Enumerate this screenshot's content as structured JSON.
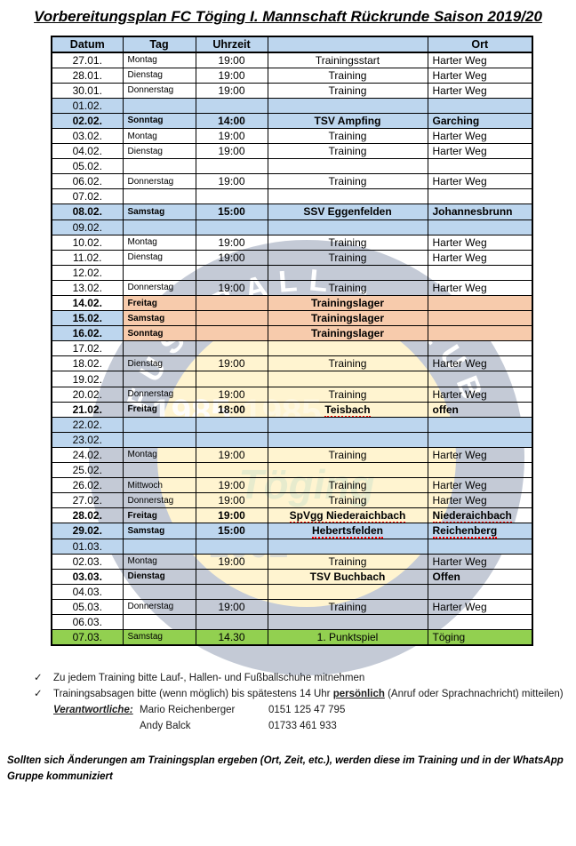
{
  "title": "Vorbereitungsplan FC Töging I. Mannschaft Rückrunde Saison 2019/20",
  "table": {
    "headers": [
      "Datum",
      "Tag",
      "Uhrzeit",
      "",
      "Ort"
    ],
    "rows": [
      {
        "date": "27.01.",
        "day": "Montag",
        "time": "19:00",
        "event": "Trainingsstart",
        "location": "Harter Weg",
        "row_bg": "white"
      },
      {
        "date": "28.01.",
        "day": "Dienstag",
        "time": "19:00",
        "event": "Training",
        "location": "Harter Weg",
        "row_bg": "white"
      },
      {
        "date": "30.01.",
        "day": "Donnerstag",
        "time": "19:00",
        "event": "Training",
        "location": "Harter Weg",
        "row_bg": "white"
      },
      {
        "date": "01.02.",
        "day": "",
        "time": "",
        "event": "",
        "location": "",
        "row_bg": "blue"
      },
      {
        "date": "02.02.",
        "day": "Sonntag",
        "time": "14:00",
        "event": "TSV Ampfing",
        "location": "Garching",
        "row_bg": "blue",
        "bold": true
      },
      {
        "date": "03.02.",
        "day": "Montag",
        "time": "19:00",
        "event": "Training",
        "location": "Harter Weg",
        "row_bg": "white"
      },
      {
        "date": "04.02.",
        "day": "Dienstag",
        "time": "19:00",
        "event": "Training",
        "location": "Harter Weg",
        "row_bg": "white"
      },
      {
        "date": "05.02.",
        "day": "",
        "time": "",
        "event": "",
        "location": "",
        "row_bg": "white"
      },
      {
        "date": "06.02.",
        "day": "Donnerstag",
        "time": "19:00",
        "event": "Training",
        "location": "Harter Weg",
        "row_bg": "white"
      },
      {
        "date": "07.02.",
        "day": "",
        "time": "",
        "event": "",
        "location": "",
        "row_bg": "white"
      },
      {
        "date": "08.02.",
        "day": "Samstag",
        "time": "15:00",
        "event": "SSV Eggenfelden",
        "location": "Johannesbrunn",
        "row_bg": "blue",
        "bold": true
      },
      {
        "date": "09.02.",
        "day": "",
        "time": "",
        "event": "",
        "location": "",
        "row_bg": "blue"
      },
      {
        "date": "10.02.",
        "day": "Montag",
        "time": "19:00",
        "event": "Training",
        "location": "Harter Weg",
        "row_bg": "white"
      },
      {
        "date": "11.02.",
        "day": "Dienstag",
        "time": "19:00",
        "event": "Training",
        "location": "Harter Weg",
        "row_bg": "white"
      },
      {
        "date": "12.02.",
        "day": "",
        "time": "",
        "event": "",
        "location": "",
        "row_bg": "white"
      },
      {
        "date": "13.02.",
        "day": "Donnerstag",
        "time": "19:00",
        "event": "Training",
        "location": "Harter Weg",
        "row_bg": "white"
      },
      {
        "date": "14.02.",
        "day": "Freitag",
        "time": "",
        "event": "Trainingslager",
        "location": "",
        "row_bg": "orange",
        "date_bg": "white",
        "bold": true
      },
      {
        "date": "15.02.",
        "day": "Samstag",
        "time": "",
        "event": "Trainingslager",
        "location": "",
        "row_bg": "orange",
        "date_bg": "blue",
        "bold": true
      },
      {
        "date": "16.02.",
        "day": "Sonntag",
        "time": "",
        "event": "Trainingslager",
        "location": "",
        "row_bg": "orange",
        "date_bg": "blue",
        "bold": true
      },
      {
        "date": "17.02.",
        "day": "",
        "time": "",
        "event": "",
        "location": "",
        "row_bg": "white"
      },
      {
        "date": "18.02.",
        "day": "Dienstag",
        "time": "19:00",
        "event": "Training",
        "location": "Harter Weg",
        "row_bg": "white"
      },
      {
        "date": "19.02.",
        "day": "",
        "time": "",
        "event": "",
        "location": "",
        "row_bg": "white"
      },
      {
        "date": "20.02.",
        "day": "Donnerstag",
        "time": "19:00",
        "event": "Training",
        "location": "Harter Weg",
        "row_bg": "white"
      },
      {
        "date": "21.02.",
        "day": "Freitag",
        "time": "18:00",
        "event": "Teisbach",
        "location": "offen",
        "row_bg": "white",
        "bold": true,
        "event_misspelled": true
      },
      {
        "date": "22.02.",
        "day": "",
        "time": "",
        "event": "",
        "location": "",
        "row_bg": "blue"
      },
      {
        "date": "23.02.",
        "day": "",
        "time": "",
        "event": "",
        "location": "",
        "row_bg": "blue"
      },
      {
        "date": "24.02.",
        "day": "Montag",
        "time": "19:00",
        "event": "Training",
        "location": "Harter Weg",
        "row_bg": "white"
      },
      {
        "date": "25.02.",
        "day": "",
        "time": "",
        "event": "",
        "location": "",
        "row_bg": "white"
      },
      {
        "date": "26.02.",
        "day": "Mittwoch",
        "time": "19:00",
        "event": "Training",
        "location": "Harter Weg",
        "row_bg": "white"
      },
      {
        "date": "27.02.",
        "day": "Donnerstag",
        "time": "19:00",
        "event": "Training",
        "location": "Harter Weg",
        "row_bg": "white"
      },
      {
        "date": "28.02.",
        "day": "Freitag",
        "time": "19:00",
        "event": "SpVgg Niederaichbach",
        "location": "Niederaichbach",
        "row_bg": "white",
        "bold": true,
        "event_misspelled": true,
        "location_misspelled": true
      },
      {
        "date": "29.02.",
        "day": "Samstag",
        "time": "15:00",
        "event": "Hebertsfelden",
        "location": "Reichenberg",
        "row_bg": "blue",
        "bold": true,
        "event_misspelled": true,
        "location_misspelled": true
      },
      {
        "date": "01.03.",
        "day": "",
        "time": "",
        "event": "",
        "location": "",
        "row_bg": "blue"
      },
      {
        "date": "02.03.",
        "day": "Montag",
        "time": "19:00",
        "event": "Training",
        "location": "Harter Weg",
        "row_bg": "white"
      },
      {
        "date": "03.03.",
        "day": "Dienstag",
        "time": "",
        "event": "TSV Buchbach",
        "location": "Offen",
        "row_bg": "white",
        "bold": true
      },
      {
        "date": "04.03.",
        "day": "",
        "time": "",
        "event": "",
        "location": "",
        "row_bg": "white"
      },
      {
        "date": "05.03.",
        "day": "Donnerstag",
        "time": "19:00",
        "event": "Training",
        "location": "Harter Weg",
        "row_bg": "white"
      },
      {
        "date": "06.03.",
        "day": "",
        "time": "",
        "event": "",
        "location": "",
        "row_bg": "white"
      },
      {
        "date": "07.03.",
        "day": "Samstag",
        "time": "14.30",
        "event": "1. Punktspiel",
        "location": "Töging",
        "row_bg": "green"
      }
    ]
  },
  "watermark": {
    "arc_text": "FUSSBALL - CLUB",
    "year_left": "1985",
    "year_right": "1985",
    "name": "Töging",
    "year2_left": "2002",
    "year2_right": "2002"
  },
  "footer": {
    "checkmark": "✓",
    "note1": "Zu jedem Training bitte Lauf-, Hallen- und Fußballschuhe mitnehmen",
    "note2_prefix": "Trainingsabsagen bitte (wenn möglich) bis spätestens 14 Uhr ",
    "note2_bold": "persönlich",
    "note2_suffix": " (Anruf oder Sprachnachricht) mitteilen)",
    "responsible_label": "Verantwortliche:",
    "contacts": [
      {
        "name": "Mario Reichenberger",
        "phone": "0151 125 47 795"
      },
      {
        "name": "Andy Balck",
        "phone": "01733 461 933"
      }
    ],
    "change_note": "Sollten sich Änderungen am Trainingsplan ergeben (Ort, Zeit, etc.), werden diese im Training und in der WhatsApp Gruppe kommuniziert"
  },
  "colors": {
    "row_blue": "#BDD6EE",
    "row_orange": "#F7CBAC",
    "row_green": "#92D050",
    "squiggle": "#FF0000",
    "crest_navy": "#1F3864",
    "crest_yellow": "#FFD84D",
    "crest_green": "#86A93F"
  }
}
